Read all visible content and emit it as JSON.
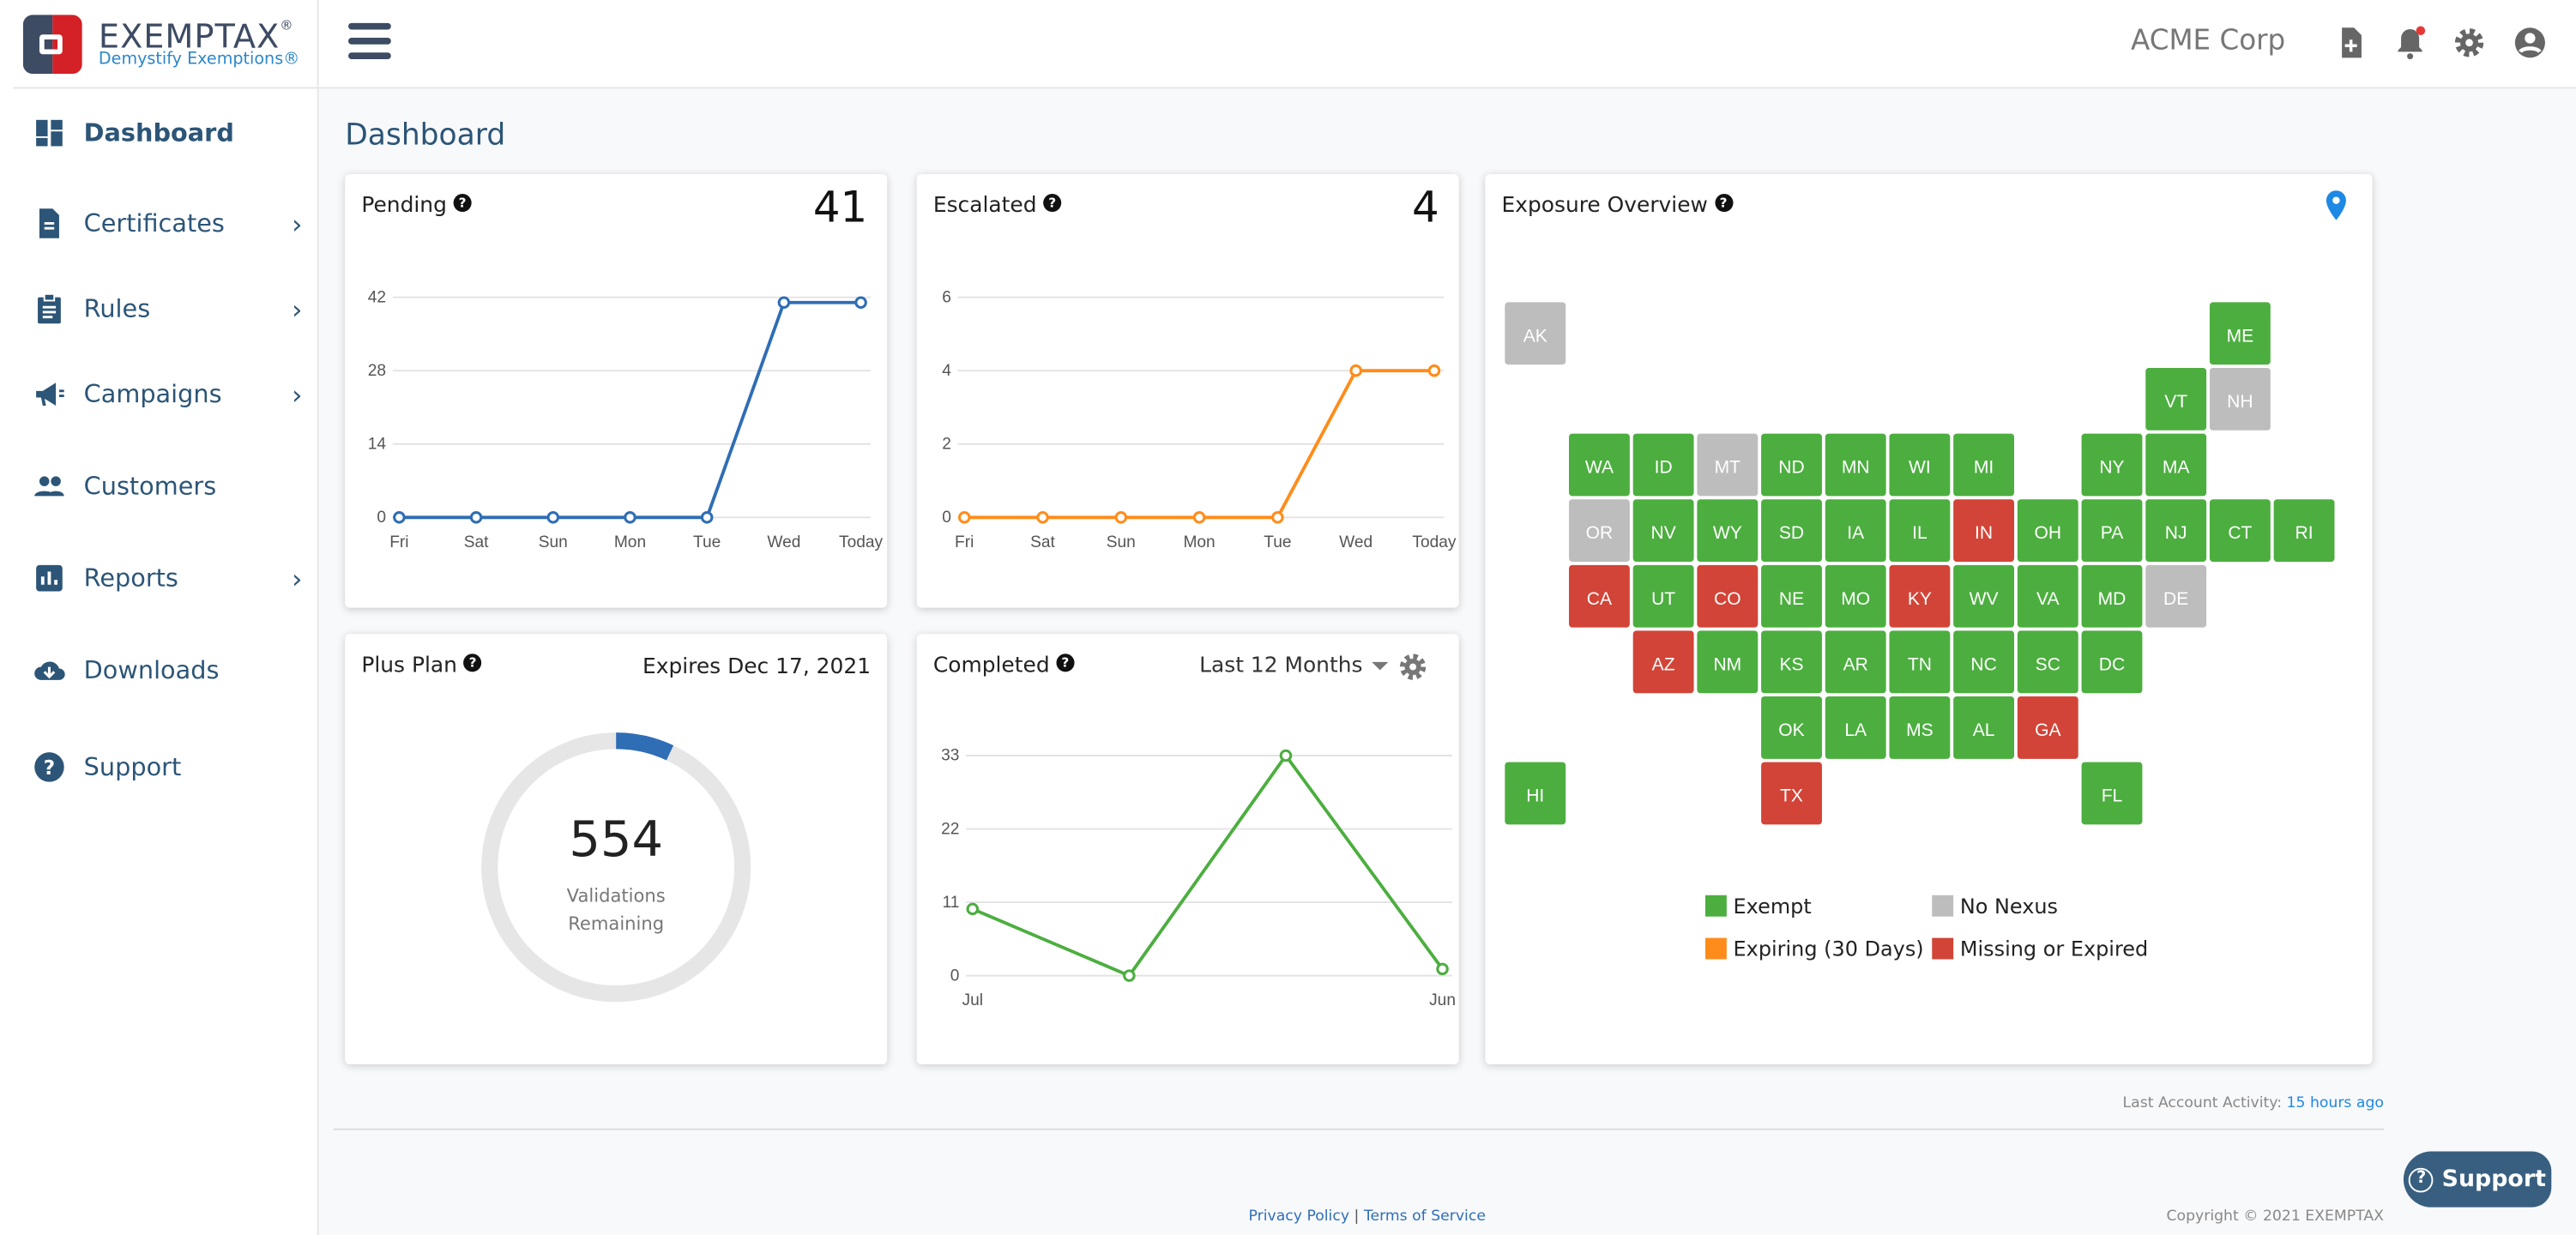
{
  "brand": {
    "name": "EXEMPTAX",
    "tagline": "Demystify Exemptions®",
    "colors": {
      "dark": "#3d4b63",
      "red": "#d42027",
      "nav": "#2c5577"
    }
  },
  "sidebar": {
    "items": [
      {
        "label": "Dashboard",
        "icon": "dashboard-icon",
        "active": true,
        "chevron": false
      },
      {
        "label": "Certificates",
        "icon": "document-icon",
        "chevron": true
      },
      {
        "label": "Rules",
        "icon": "clipboard-icon",
        "chevron": true
      },
      {
        "label": "Campaigns",
        "icon": "megaphone-icon",
        "chevron": true
      },
      {
        "label": "Customers",
        "icon": "people-icon",
        "chevron": false
      },
      {
        "label": "Reports",
        "icon": "bar-chart-icon",
        "chevron": true
      },
      {
        "label": "Downloads",
        "icon": "cloud-download-icon",
        "chevron": false
      },
      {
        "label": "Support",
        "icon": "help-circle-icon",
        "chevron": false
      }
    ]
  },
  "header": {
    "company": "ACME Corp",
    "icons": [
      "add-document-icon",
      "bell-icon",
      "gear-icon",
      "account-circle-icon"
    ]
  },
  "page": {
    "title": "Dashboard"
  },
  "cards": {
    "pending": {
      "title": "Pending",
      "count": "41"
    },
    "escalated": {
      "title": "Escalated",
      "count": "4"
    },
    "plan": {
      "title": "Plus Plan",
      "expires": "Expires Dec 17, 2021",
      "remaining": "554",
      "remaining_label_1": "Validations",
      "remaining_label_2": "Remaining",
      "used_fraction": 0.07
    },
    "completed": {
      "title": "Completed",
      "range": "Last 12 Months"
    },
    "exposure": {
      "title": "Exposure Overview"
    }
  },
  "chart_data": [
    {
      "type": "line",
      "title": "Pending",
      "categories": [
        "Fri",
        "Sat",
        "Sun",
        "Mon",
        "Tue",
        "Wed",
        "Today"
      ],
      "values": [
        0,
        0,
        0,
        0,
        0,
        41,
        41
      ],
      "yticks": [
        0,
        14,
        28,
        42
      ],
      "ylim": [
        0,
        42
      ],
      "color": "#2f6db5"
    },
    {
      "type": "line",
      "title": "Escalated",
      "categories": [
        "Fri",
        "Sat",
        "Sun",
        "Mon",
        "Tue",
        "Wed",
        "Today"
      ],
      "values": [
        0,
        0,
        0,
        0,
        0,
        4,
        4
      ],
      "yticks": [
        0,
        2,
        4,
        6
      ],
      "ylim": [
        0,
        6
      ],
      "color": "#ff8c1a"
    },
    {
      "type": "line",
      "title": "Completed",
      "categories": [
        "Jul",
        "",
        "",
        "Jun"
      ],
      "values": [
        10,
        0,
        33,
        1
      ],
      "yticks": [
        0,
        11,
        22,
        33
      ],
      "ylim": [
        0,
        33
      ],
      "color": "#4cae3f"
    }
  ],
  "map": {
    "statuses": {
      "exempt": "#4cae3f",
      "no_nexus": "#bdbdbd",
      "expiring": "#ff8c1a",
      "missing": "#d24437"
    },
    "states": [
      {
        "code": "AK",
        "s": "no_nexus"
      },
      {
        "code": "ME",
        "s": "exempt"
      },
      {
        "code": "VT",
        "s": "exempt"
      },
      {
        "code": "NH",
        "s": "no_nexus"
      },
      {
        "code": "WA",
        "s": "exempt"
      },
      {
        "code": "ID",
        "s": "exempt"
      },
      {
        "code": "MT",
        "s": "no_nexus"
      },
      {
        "code": "ND",
        "s": "exempt"
      },
      {
        "code": "MN",
        "s": "exempt"
      },
      {
        "code": "WI",
        "s": "exempt"
      },
      {
        "code": "MI",
        "s": "exempt"
      },
      {
        "code": "NY",
        "s": "exempt"
      },
      {
        "code": "MA",
        "s": "exempt"
      },
      {
        "code": "OR",
        "s": "no_nexus"
      },
      {
        "code": "NV",
        "s": "exempt"
      },
      {
        "code": "WY",
        "s": "exempt"
      },
      {
        "code": "SD",
        "s": "exempt"
      },
      {
        "code": "IA",
        "s": "exempt"
      },
      {
        "code": "IL",
        "s": "exempt"
      },
      {
        "code": "IN",
        "s": "missing"
      },
      {
        "code": "OH",
        "s": "exempt"
      },
      {
        "code": "PA",
        "s": "exempt"
      },
      {
        "code": "NJ",
        "s": "exempt"
      },
      {
        "code": "CT",
        "s": "exempt"
      },
      {
        "code": "RI",
        "s": "exempt"
      },
      {
        "code": "CA",
        "s": "missing"
      },
      {
        "code": "UT",
        "s": "exempt"
      },
      {
        "code": "CO",
        "s": "missing"
      },
      {
        "code": "NE",
        "s": "exempt"
      },
      {
        "code": "MO",
        "s": "exempt"
      },
      {
        "code": "KY",
        "s": "missing"
      },
      {
        "code": "WV",
        "s": "exempt"
      },
      {
        "code": "VA",
        "s": "exempt"
      },
      {
        "code": "MD",
        "s": "exempt"
      },
      {
        "code": "DE",
        "s": "no_nexus"
      },
      {
        "code": "AZ",
        "s": "missing"
      },
      {
        "code": "NM",
        "s": "exempt"
      },
      {
        "code": "KS",
        "s": "exempt"
      },
      {
        "code": "AR",
        "s": "exempt"
      },
      {
        "code": "TN",
        "s": "exempt"
      },
      {
        "code": "NC",
        "s": "exempt"
      },
      {
        "code": "SC",
        "s": "exempt"
      },
      {
        "code": "DC",
        "s": "exempt"
      },
      {
        "code": "OK",
        "s": "exempt"
      },
      {
        "code": "LA",
        "s": "exempt"
      },
      {
        "code": "MS",
        "s": "exempt"
      },
      {
        "code": "AL",
        "s": "exempt"
      },
      {
        "code": "GA",
        "s": "missing"
      },
      {
        "code": "HI",
        "s": "exempt"
      },
      {
        "code": "TX",
        "s": "missing"
      },
      {
        "code": "FL",
        "s": "exempt"
      }
    ],
    "legend": [
      {
        "key": "exempt",
        "label": "Exempt"
      },
      {
        "key": "no_nexus",
        "label": "No Nexus"
      },
      {
        "key": "expiring",
        "label": "Expiring (30 Days)"
      },
      {
        "key": "missing",
        "label": "Missing or Expired"
      }
    ]
  },
  "footer": {
    "activity_label": "Last Account Activity:",
    "activity_value": "15 hours ago",
    "privacy": "Privacy Policy",
    "separator": "|",
    "terms": "Terms of Service",
    "copyright": "Copyright © 2021 EXEMPTAX",
    "support_button": "Support"
  }
}
